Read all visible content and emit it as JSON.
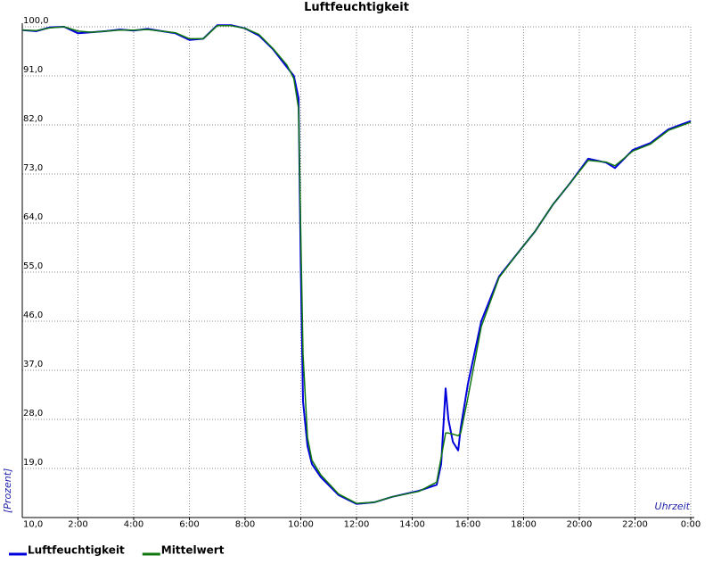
{
  "chart_data": {
    "type": "line",
    "title": "Luftfeuchtigkeit",
    "y_label": "[Prozent]",
    "x_label": "Uhrzeit",
    "xlim": [
      0,
      24
    ],
    "ylim": [
      10,
      100
    ],
    "xticks": [
      {
        "value": 2,
        "label": "2:00"
      },
      {
        "value": 4,
        "label": "4:00"
      },
      {
        "value": 6,
        "label": "6:00"
      },
      {
        "value": 8,
        "label": "8:00"
      },
      {
        "value": 10,
        "label": "10:00"
      },
      {
        "value": 12,
        "label": "12:00"
      },
      {
        "value": 14,
        "label": "14:00"
      },
      {
        "value": 16,
        "label": "16:00"
      },
      {
        "value": 18,
        "label": "18:00"
      },
      {
        "value": 20,
        "label": "20:00"
      },
      {
        "value": 22,
        "label": "22:00"
      },
      {
        "value": 24,
        "label": "0:00"
      }
    ],
    "yticks": [
      {
        "value": 10,
        "label": "10,0"
      },
      {
        "value": 19,
        "label": "19,0"
      },
      {
        "value": 28,
        "label": "28,0"
      },
      {
        "value": 37,
        "label": "37,0"
      },
      {
        "value": 46,
        "label": "46,0"
      },
      {
        "value": 55,
        "label": "55,0"
      },
      {
        "value": 64,
        "label": "64,0"
      },
      {
        "value": 73,
        "label": "73,0"
      },
      {
        "value": 82,
        "label": "82,0"
      },
      {
        "value": 91,
        "label": "91,0"
      },
      {
        "value": 100,
        "label": "100,0"
      }
    ],
    "grid": true,
    "legend": "bottom",
    "x": [
      0,
      0.5,
      1,
      1.5,
      2,
      2.5,
      3,
      3.5,
      4,
      4.5,
      5,
      5.5,
      6,
      6.5,
      7,
      7.5,
      8,
      8.5,
      9,
      9.5,
      9.75,
      9.92,
      10,
      10.08,
      10.24,
      10.4,
      10.72,
      11.36,
      12,
      12.64,
      13.28,
      14.24,
      14.88,
      15.04,
      15.2,
      15.3,
      15.46,
      15.65,
      15.74,
      16,
      16.48,
      17.12,
      17.76,
      18.4,
      19.04,
      19.68,
      20.32,
      20.96,
      21.28,
      21.92,
      22.56,
      23.2,
      24
    ],
    "series": [
      {
        "name": "Luftfeuchtigkeit",
        "color": "#0000dd",
        "values": [
          99.4,
          99.2,
          99.9,
          100,
          98.8,
          99,
          99.2,
          99.5,
          99.3,
          99.6,
          99.2,
          98.8,
          97.6,
          97.8,
          100.3,
          100.3,
          99.7,
          98.4,
          95.9,
          92.6,
          91,
          86.9,
          55.8,
          31.3,
          23.1,
          19.8,
          17.4,
          14.1,
          12.5,
          12.8,
          13.8,
          14.9,
          16,
          19.8,
          33.7,
          28,
          23.9,
          22.3,
          26.4,
          34.5,
          46,
          54.2,
          58.3,
          62.4,
          67.3,
          71.4,
          75.8,
          75.1,
          74.1,
          77.4,
          78.7,
          81.2,
          82.7
        ]
      },
      {
        "name": "Mittelwert",
        "color": "#117711",
        "values": [
          99.4,
          99.3,
          99.8,
          100,
          99.2,
          99,
          99.2,
          99.4,
          99.4,
          99.5,
          99.2,
          98.9,
          97.8,
          97.8,
          100.2,
          100.2,
          99.7,
          98.6,
          96,
          93,
          90.5,
          85,
          62,
          40,
          24.7,
          20.5,
          17.8,
          14.3,
          12.6,
          12.8,
          13.8,
          14.8,
          16.5,
          21,
          25.5,
          25.5,
          25.3,
          25,
          25.5,
          32,
          45,
          54,
          58.3,
          62.4,
          67.3,
          71.4,
          75.5,
          75.2,
          74.5,
          77.2,
          78.5,
          81,
          82.5
        ]
      }
    ]
  }
}
